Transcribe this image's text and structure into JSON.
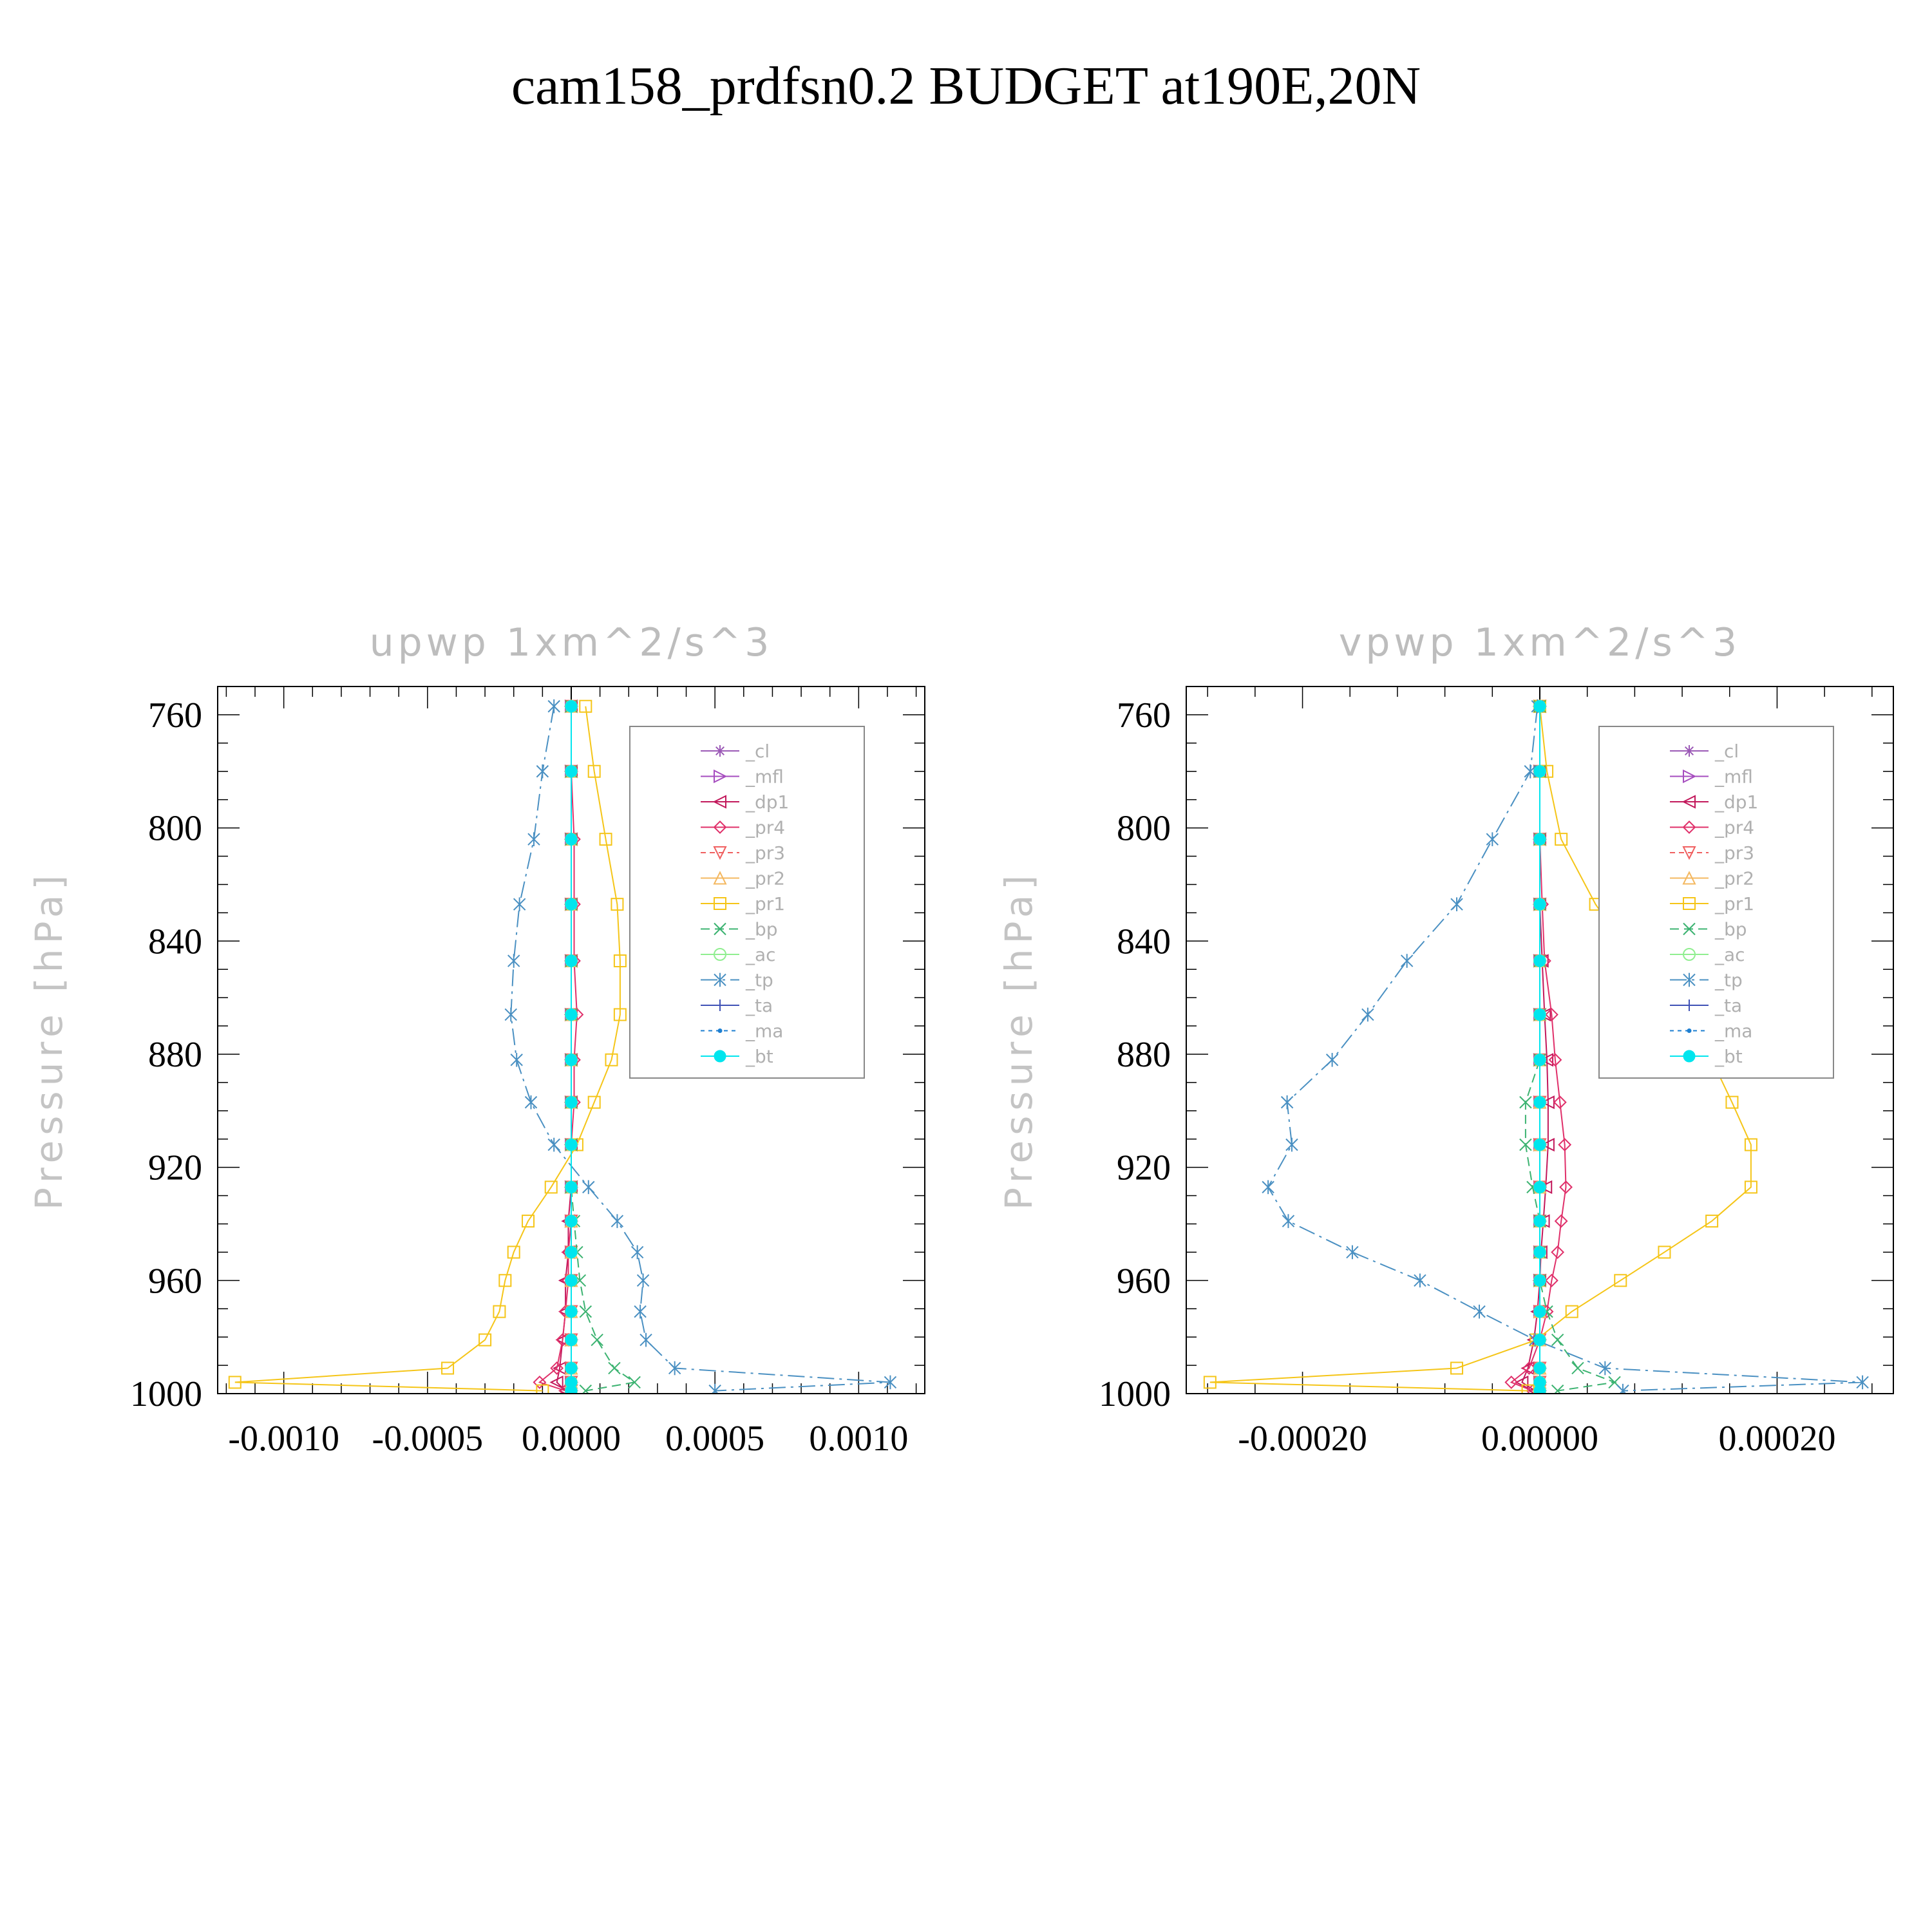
{
  "figure": {
    "title": "cam158_prdfsn0.2  BUDGET at190E,20N"
  },
  "chart_data": [
    {
      "type": "line",
      "title": "upwp    1xm^2/s^3",
      "ylabel": "Pressure  [hPa]",
      "xlabel": "",
      "xlim": [
        -0.00123,
        0.00123
      ],
      "ylim": [
        750,
        1000
      ],
      "y_inverted": true,
      "xticks": [
        -0.001,
        -0.0005,
        0.0,
        0.0005,
        0.001
      ],
      "xtick_labels": [
        "-0.0010",
        "-0.0005",
        "0.0000",
        "0.0005",
        "0.0010"
      ],
      "yticks": [
        760,
        800,
        840,
        880,
        920,
        960,
        1000
      ],
      "ytick_labels": [
        "760",
        "800",
        "840",
        "880",
        "920",
        "960",
        "1000"
      ],
      "legend_position": "top-right",
      "levels": [
        757,
        780,
        804,
        827,
        847,
        866,
        882,
        897,
        912,
        927,
        939,
        950,
        960,
        971,
        981,
        991,
        996,
        999
      ],
      "series": [
        {
          "name": "_cl",
          "color": "#9b59b6",
          "marker": "star",
          "dash": "",
          "values": [
            0,
            0,
            0,
            0,
            0,
            0,
            0,
            0,
            0,
            0,
            0,
            0,
            0,
            0,
            0,
            0,
            0,
            0
          ]
        },
        {
          "name": "_mfl",
          "color": "#a64dbf",
          "marker": "tri-right",
          "dash": "",
          "values": [
            0,
            0,
            0,
            0,
            0,
            0,
            0,
            0,
            0,
            0,
            0,
            0,
            0,
            0,
            0,
            0,
            0,
            0
          ]
        },
        {
          "name": "_dp1",
          "color": "#c2185b",
          "marker": "tri-left",
          "dash": "",
          "values": [
            0,
            0,
            0,
            0,
            0,
            0,
            0,
            0,
            0,
            0,
            -1e-05,
            -1e-05,
            -2e-05,
            -2e-05,
            -3e-05,
            -4e-05,
            -5e-05,
            -2e-05
          ]
        },
        {
          "name": "_pr4",
          "color": "#e0306a",
          "marker": "diamond",
          "dash": "",
          "values": [
            0,
            0,
            1e-05,
            1e-05,
            1e-05,
            2e-05,
            1e-05,
            1e-05,
            0,
            0,
            0,
            -1e-05,
            -1e-05,
            -2e-05,
            -3e-05,
            -5e-05,
            -0.00011,
            -2e-05
          ]
        },
        {
          "name": "_pr3",
          "color": "#f06060",
          "marker": "tri-down",
          "dash": "8,6",
          "values": [
            0,
            0,
            0,
            0,
            0,
            0,
            0,
            0,
            0,
            0,
            0,
            0,
            0,
            0,
            0,
            0,
            0,
            0
          ]
        },
        {
          "name": "_pr2",
          "color": "#f4b860",
          "marker": "tri-up",
          "dash": "",
          "values": [
            0,
            0,
            0,
            0,
            0,
            0,
            0,
            0,
            0,
            0,
            0,
            0,
            0,
            0,
            0,
            0,
            0,
            0
          ]
        },
        {
          "name": "_pr1",
          "color": "#f5c518",
          "marker": "square",
          "dash": "",
          "values": [
            5e-05,
            8e-05,
            0.00012,
            0.00016,
            0.00017,
            0.00017,
            0.00014,
            8e-05,
            2e-05,
            -7e-05,
            -0.00015,
            -0.0002,
            -0.00023,
            -0.00025,
            -0.0003,
            -0.00043,
            -0.00117,
            -0.0001
          ]
        },
        {
          "name": "_bp",
          "color": "#3cb371",
          "marker": "x",
          "dash": "14,8",
          "values": [
            0,
            0,
            0,
            0,
            0,
            0,
            0,
            0,
            0,
            0,
            1e-05,
            2e-05,
            3e-05,
            5e-05,
            9e-05,
            0.00015,
            0.00022,
            5e-05
          ]
        },
        {
          "name": "_ac",
          "color": "#90ee90",
          "marker": "circle",
          "dash": "",
          "values": [
            0,
            0,
            0,
            0,
            0,
            0,
            0,
            0,
            0,
            0,
            0,
            0,
            0,
            0,
            0,
            0,
            0,
            0
          ]
        },
        {
          "name": "_tp",
          "color": "#4a90c2",
          "marker": "asterisk",
          "dash": "26,8,4,8",
          "values": [
            -6e-05,
            -0.0001,
            -0.00013,
            -0.00018,
            -0.0002,
            -0.00021,
            -0.00019,
            -0.00014,
            -6e-05,
            6e-05,
            0.00016,
            0.00023,
            0.00025,
            0.00024,
            0.00026,
            0.00036,
            0.00111,
            0.0005
          ]
        },
        {
          "name": "_ta",
          "color": "#3f51b5",
          "marker": "plus",
          "dash": "",
          "values": [
            0,
            0,
            0,
            0,
            0,
            0,
            0,
            0,
            0,
            0,
            0,
            0,
            0,
            0,
            0,
            0,
            0,
            0
          ]
        },
        {
          "name": "_ma",
          "color": "#1e7fd1",
          "marker": "dot",
          "dash": "6,6",
          "values": [
            0,
            0,
            0,
            0,
            0,
            0,
            0,
            0,
            0,
            0,
            0,
            0,
            0,
            0,
            0,
            0,
            0,
            0
          ]
        },
        {
          "name": "_bt",
          "color": "#00e5ee",
          "marker": "filled-circle",
          "dash": "",
          "values": [
            0,
            0,
            0,
            0,
            0,
            0,
            0,
            0,
            0,
            0,
            0,
            0,
            0,
            0,
            0,
            0,
            0,
            0
          ]
        }
      ]
    },
    {
      "type": "line",
      "title": "vpwp    1xm^2/s^3",
      "ylabel": "Pressure  [hPa]",
      "xlabel": "",
      "xlim": [
        -0.000298,
        0.000298
      ],
      "ylim": [
        750,
        1000
      ],
      "y_inverted": true,
      "xticks": [
        -0.0002,
        0.0,
        0.0002
      ],
      "xtick_labels": [
        "-0.00020",
        "0.00000",
        "0.00020"
      ],
      "yticks": [
        760,
        800,
        840,
        880,
        920,
        960,
        1000
      ],
      "ytick_labels": [
        "760",
        "800",
        "840",
        "880",
        "920",
        "960",
        "1000"
      ],
      "legend_position": "top-right",
      "levels": [
        757,
        780,
        804,
        827,
        847,
        866,
        882,
        897,
        912,
        927,
        939,
        950,
        960,
        971,
        981,
        991,
        996,
        999
      ],
      "series": [
        {
          "name": "_cl",
          "color": "#9b59b6",
          "marker": "star",
          "dash": "",
          "values": [
            0,
            0,
            0,
            0,
            0,
            0,
            0,
            0,
            0,
            0,
            0,
            0,
            0,
            0,
            0,
            0,
            0,
            0
          ]
        },
        {
          "name": "_mfl",
          "color": "#a64dbf",
          "marker": "tri-right",
          "dash": "",
          "values": [
            0,
            0,
            0,
            0,
            0,
            0,
            0,
            0,
            0,
            0,
            0,
            0,
            0,
            0,
            0,
            0,
            0,
            0
          ]
        },
        {
          "name": "_dp1",
          "color": "#c2185b",
          "marker": "tri-left",
          "dash": "",
          "values": [
            0,
            0,
            0,
            0,
            2e-06,
            4e-06,
            6e-06,
            7e-06,
            7e-06,
            5e-06,
            3e-06,
            1e-06,
            0,
            -2e-06,
            -5e-06,
            -1e-05,
            -1.5e-05,
            -4e-06
          ]
        },
        {
          "name": "_pr4",
          "color": "#e0306a",
          "marker": "diamond",
          "dash": "",
          "values": [
            0,
            0,
            0,
            2e-06,
            4e-06,
            1e-05,
            1.3e-05,
            1.7e-05,
            2.1e-05,
            2.2e-05,
            1.8e-05,
            1.5e-05,
            1e-05,
            6e-06,
            0,
            -9e-06,
            -2.4e-05,
            -6e-06
          ]
        },
        {
          "name": "_pr3",
          "color": "#f06060",
          "marker": "tri-down",
          "dash": "8,6",
          "values": [
            0,
            0,
            0,
            0,
            0,
            0,
            0,
            0,
            0,
            0,
            0,
            0,
            0,
            0,
            0,
            0,
            0,
            0
          ]
        },
        {
          "name": "_pr2",
          "color": "#f4b860",
          "marker": "tri-up",
          "dash": "",
          "values": [
            0,
            0,
            0,
            0,
            0,
            0,
            0,
            0,
            0,
            0,
            0,
            0,
            0,
            0,
            0,
            0,
            0,
            0
          ]
        },
        {
          "name": "_pr1",
          "color": "#f5c518",
          "marker": "square",
          "dash": "",
          "values": [
            0,
            6e-06,
            1.8e-05,
            4.7e-05,
            8e-05,
            0.000115,
            0.000145,
            0.000162,
            0.000178,
            0.000178,
            0.000145,
            0.000105,
            6.8e-05,
            2.7e-05,
            -3e-06,
            -7e-05,
            -0.000278,
            -1e-05
          ]
        },
        {
          "name": "_bp",
          "color": "#3cb371",
          "marker": "x",
          "dash": "14,8",
          "values": [
            0,
            0,
            0,
            0,
            0,
            0,
            0,
            -1.2e-05,
            -1.2e-05,
            -6e-06,
            0,
            0,
            0,
            6e-06,
            1.5e-05,
            3.2e-05,
            6.3e-05,
            1.5e-05
          ]
        },
        {
          "name": "_ac",
          "color": "#90ee90",
          "marker": "circle",
          "dash": "",
          "values": [
            0,
            0,
            0,
            0,
            0,
            0,
            0,
            0,
            0,
            0,
            0,
            0,
            0,
            0,
            0,
            0,
            0,
            0
          ]
        },
        {
          "name": "_tp",
          "color": "#4a90c2",
          "marker": "asterisk",
          "dash": "26,8,4,8",
          "values": [
            -2e-06,
            -8e-06,
            -4e-05,
            -7e-05,
            -0.000112,
            -0.000145,
            -0.000175,
            -0.000213,
            -0.000209,
            -0.000229,
            -0.000212,
            -0.000158,
            -0.000101,
            -5.1e-05,
            -4e-06,
            5.5e-05,
            0.000272,
            7e-05
          ]
        },
        {
          "name": "_ta",
          "color": "#3f51b5",
          "marker": "plus",
          "dash": "",
          "values": [
            0,
            0,
            0,
            0,
            0,
            0,
            0,
            0,
            0,
            0,
            0,
            0,
            0,
            0,
            0,
            0,
            0,
            0
          ]
        },
        {
          "name": "_ma",
          "color": "#1e7fd1",
          "marker": "dot",
          "dash": "6,6",
          "values": [
            0,
            0,
            0,
            0,
            0,
            0,
            0,
            0,
            0,
            0,
            0,
            0,
            0,
            0,
            0,
            0,
            0,
            0
          ]
        },
        {
          "name": "_bt",
          "color": "#00e5ee",
          "marker": "filled-circle",
          "dash": "",
          "values": [
            0,
            0,
            0,
            0,
            0,
            0,
            0,
            0,
            0,
            0,
            0,
            0,
            0,
            0,
            0,
            0,
            0,
            0
          ]
        }
      ]
    }
  ]
}
